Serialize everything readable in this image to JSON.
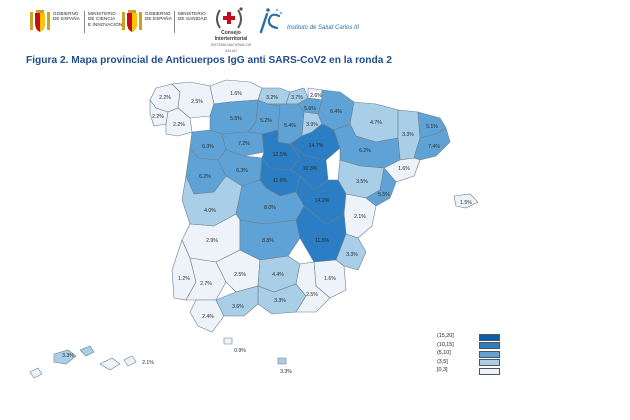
{
  "header": {
    "ministry1": [
      "MINISTERIO",
      "DE CIENCIA",
      "E INNOVACIÓN"
    ],
    "ministry2": [
      "MINISTERIO",
      "DE SANIDAD"
    ],
    "gov1": [
      "GOBIERNO",
      "DE ESPAÑA"
    ],
    "gov2": [
      "GOBIERNO",
      "DE ESPAÑA"
    ],
    "cisns_name": "Consejo Interterritorial",
    "cisns_sub": "SISTEMA NACIONAL DE SALUD",
    "isciii_name": "Instituto de Salud Carlos III",
    "colors": {
      "red": "#c60b1e",
      "yellow": "#ffc400",
      "isciii": "#2a6ea6"
    }
  },
  "figure": {
    "title": "Figura 2. Mapa provincial de Anticuerpos IgG anti SARS-CoV2 en la ronda 2"
  },
  "legend": {
    "bins": [
      {
        "label": "(15,20]",
        "min": 15,
        "max": 20,
        "color": "#0a5ea8"
      },
      {
        "label": "(10,15]",
        "min": 10,
        "max": 15,
        "color": "#2b7ec4"
      },
      {
        "label": "(5,10]",
        "min": 5,
        "max": 10,
        "color": "#5fa3d6"
      },
      {
        "label": "(3,5]",
        "min": 3,
        "max": 5,
        "color": "#a9cfe8"
      },
      {
        "label": "[0,3]",
        "min": 0,
        "max": 3,
        "color": "#eef3fa"
      }
    ]
  },
  "provinces": [
    {
      "name": "A Coruña",
      "value": 2.2
    },
    {
      "name": "Lugo",
      "value": 2.5
    },
    {
      "name": "Asturias",
      "value": 1.6
    },
    {
      "name": "Cantabria",
      "value": 3.2
    },
    {
      "name": "Bizkaia",
      "value": 3.7
    },
    {
      "name": "Gipuzkoa",
      "value": 2.6
    },
    {
      "name": "Pontevedra",
      "value": 2.2
    },
    {
      "name": "Ourense",
      "value": 2.2
    },
    {
      "name": "León",
      "value": 5.5
    },
    {
      "name": "Palencia",
      "value": 5.2
    },
    {
      "name": "Burgos",
      "value": 5.4
    },
    {
      "name": "Araba",
      "value": 5.6
    },
    {
      "name": "Navarra",
      "value": 6.4
    },
    {
      "name": "La Rioja",
      "value": 3.9
    },
    {
      "name": "Huesca",
      "value": 4.7
    },
    {
      "name": "Lleida",
      "value": 3.3
    },
    {
      "name": "Girona",
      "value": 5.1
    },
    {
      "name": "Zamora",
      "value": 6.3
    },
    {
      "name": "Valladolid",
      "value": 7.2
    },
    {
      "name": "Soria",
      "value": 14.7
    },
    {
      "name": "Zaragoza",
      "value": 6.2
    },
    {
      "name": "Barcelona",
      "value": 7.4
    },
    {
      "name": "Salamanca",
      "value": 6.2
    },
    {
      "name": "Ávila",
      "value": 6.3
    },
    {
      "name": "Segovia",
      "value": 12.5
    },
    {
      "name": "Madrid",
      "value": 11.6
    },
    {
      "name": "Guadalajara",
      "value": 10.3
    },
    {
      "name": "Teruel",
      "value": 3.5
    },
    {
      "name": "Tarragona",
      "value": 1.6
    },
    {
      "name": "Castellón",
      "value": 5.5
    },
    {
      "name": "Cáceres",
      "value": 4.0
    },
    {
      "name": "Toledo",
      "value": 8.0
    },
    {
      "name": "Cuenca",
      "value": 14.2
    },
    {
      "name": "Illes Balears",
      "value": 1.5
    },
    {
      "name": "Valencia",
      "value": 2.1
    },
    {
      "name": "Badajoz",
      "value": 2.9
    },
    {
      "name": "Ciudad Real",
      "value": 8.8
    },
    {
      "name": "Albacete",
      "value": 11.5
    },
    {
      "name": "Alicante",
      "value": 3.3
    },
    {
      "name": "Huelva",
      "value": 1.2
    },
    {
      "name": "Sevilla",
      "value": 2.7
    },
    {
      "name": "Córdoba",
      "value": 2.5
    },
    {
      "name": "Jaén",
      "value": 4.4
    },
    {
      "name": "Murcia",
      "value": 1.6
    },
    {
      "name": "Granada",
      "value": 3.3
    },
    {
      "name": "Almería",
      "value": 2.5
    },
    {
      "name": "Cádiz",
      "value": 2.4
    },
    {
      "name": "Málaga",
      "value": 3.6
    },
    {
      "name": "Ceuta",
      "value": 0.9
    },
    {
      "name": "Melilla",
      "value": 3.3
    },
    {
      "name": "Las Palmas",
      "value": 3.3
    },
    {
      "name": "Santa Cruz de Tenerife",
      "value": 2.1
    }
  ]
}
